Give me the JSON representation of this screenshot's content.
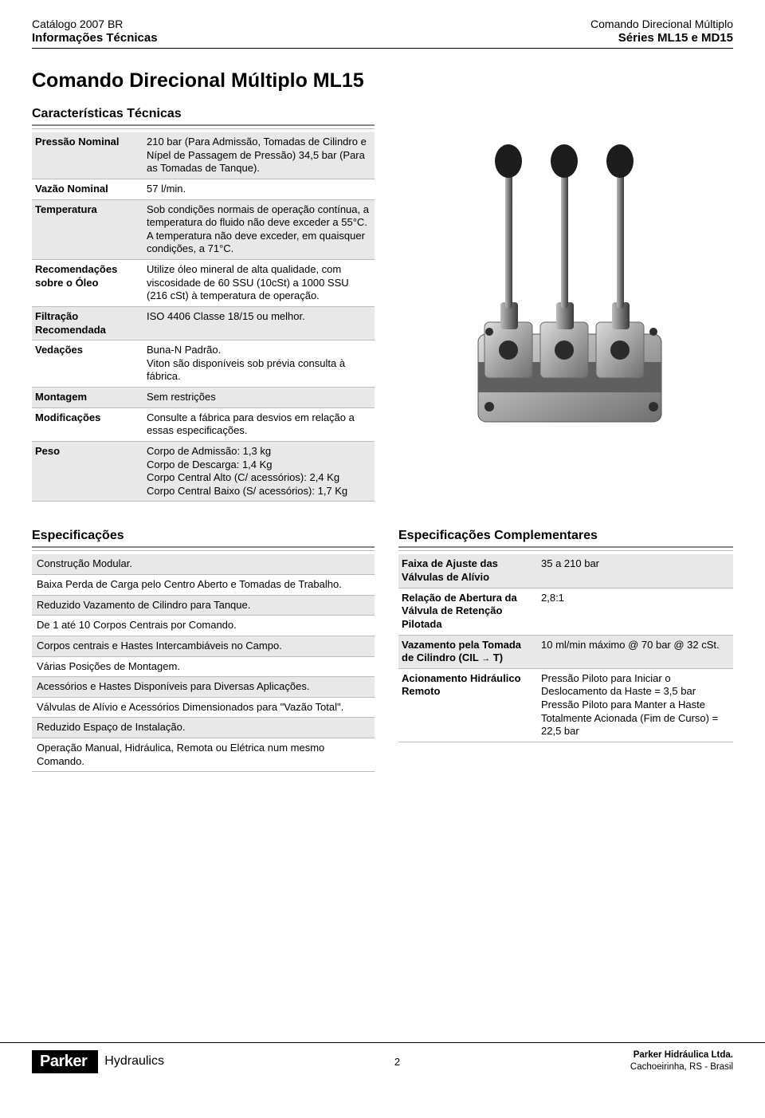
{
  "header": {
    "left_top": "Catálogo 2007 BR",
    "left_bottom": "Informações Técnicas",
    "right_top": "Comando Direcional Múltiplo",
    "right_bottom": "Séries ML15 e MD15"
  },
  "title": "Comando Direcional Múltiplo ML15",
  "tech": {
    "heading": "Características Técnicas",
    "rows": [
      {
        "label": "Pressão Nominal",
        "value": "210 bar (Para Admissão, Tomadas de Cilindro e Nípel de Passagem de Pressão) 34,5 bar (Para as Tomadas de Tanque)."
      },
      {
        "label": "Vazão Nominal",
        "value": "57 l/min."
      },
      {
        "label": "Temperatura",
        "value": "Sob condições normais de operação contínua, a temperatura do fluido não deve exceder a 55°C. A temperatura não deve exceder, em quaisquer condições, a 71°C."
      },
      {
        "label": "Recomendações sobre o Óleo",
        "value": "Utilize óleo mineral de alta qualidade, com viscosidade de 60 SSU (10cSt) a 1000 SSU (216 cSt) à temperatura de operação."
      },
      {
        "label": "Filtração Recomendada",
        "value": "ISO 4406 Classe 18/15 ou melhor."
      },
      {
        "label": "Vedações",
        "value": "Buna-N Padrão.\nViton são disponíveis sob prévia consulta à fábrica."
      },
      {
        "label": "Montagem",
        "value": "Sem restrições"
      },
      {
        "label": "Modificações",
        "value": "Consulte a fábrica para desvios em relação a essas especificações."
      },
      {
        "label": "Peso",
        "value": "Corpo de Admissão: 1,3 kg\nCorpo de Descarga: 1,4 Kg\nCorpo Central Alto (C/ acessórios): 2,4 Kg\nCorpo Central Baixo (S/ acessórios): 1,7 Kg"
      }
    ]
  },
  "specs": {
    "heading": "Especificações",
    "items": [
      "Construção Modular.",
      "Baixa Perda de Carga pelo Centro Aberto e Tomadas de Trabalho.",
      "Reduzido Vazamento de Cilindro para Tanque.",
      "De 1 até 10 Corpos Centrais por Comando.",
      "Corpos centrais e Hastes Intercambiáveis no Campo.",
      "Várias Posições de Montagem.",
      "Acessórios e Hastes Disponíveis para Diversas Aplicações.",
      "Válvulas de Alívio e Acessórios Dimensionados para \"Vazão Total\".",
      "Reduzido Espaço de Instalação.",
      "Operação Manual, Hidráulica, Remota ou Elétrica num mesmo Comando."
    ]
  },
  "comp": {
    "heading": "Especificações Complementares",
    "rows": [
      {
        "label": "Faixa de Ajuste das Válvulas de Alívio",
        "value": "35 a 210 bar"
      },
      {
        "label": "Relação de Abertura da Válvula de Retenção Pilotada",
        "value": "2,8:1"
      },
      {
        "label": "Vazamento pela Tomada de Cilindro (CIL → T)",
        "value": "10 ml/min máximo @ 70 bar @ 32 cSt."
      },
      {
        "label": "Acionamento Hidráulico Remoto",
        "value": "Pressão Piloto para Iniciar o Deslocamento da Haste = 3,5 bar\nPressão Piloto para Manter a Haste Totalmente Acionada (Fim de Curso) = 22,5 bar"
      }
    ]
  },
  "footer": {
    "logo": "Parker",
    "hydraulics": "Hydraulics",
    "page": "2",
    "company": "Parker Hidráulica Ltda.",
    "location": "Cachoeirinha, RS - Brasil"
  }
}
